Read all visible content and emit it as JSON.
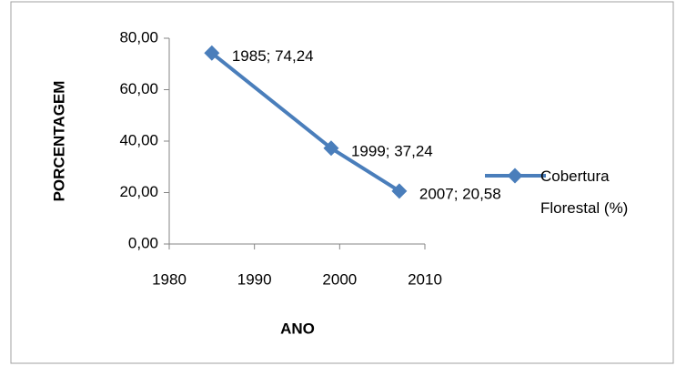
{
  "chart_data": {
    "type": "line",
    "x": [
      1985,
      1999,
      2007
    ],
    "series": [
      {
        "name": "Cobertura Florestal (%)",
        "color": "#4a7ebb",
        "values": [
          74.24,
          37.24,
          20.58
        ],
        "value_labels": [
          "1985; 74,24",
          "1999; 37,24",
          "2007; 20,58"
        ]
      }
    ],
    "xlabel": "ANO",
    "ylabel": "PORCENTAGEM",
    "xlim": [
      1980,
      2010
    ],
    "xticks": [
      1980,
      1990,
      2000,
      2010
    ],
    "ylim": [
      0,
      80
    ],
    "yticks": [
      {
        "value": 0,
        "label": "0,00"
      },
      {
        "value": 20,
        "label": "20,00"
      },
      {
        "value": 40,
        "label": "40,00"
      },
      {
        "value": 60,
        "label": "60,00"
      },
      {
        "value": 80,
        "label": "80,00"
      }
    ],
    "legend": "right",
    "grid": false
  }
}
